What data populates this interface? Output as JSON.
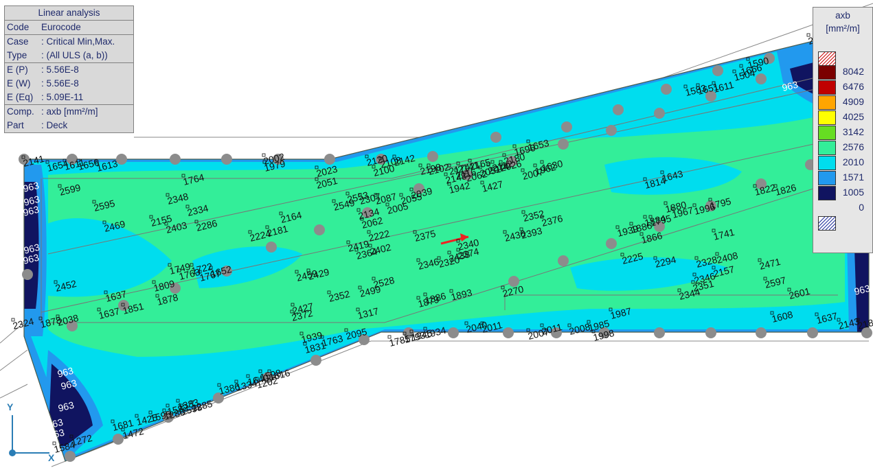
{
  "info_panel": {
    "title": "Linear analysis",
    "rows": [
      {
        "key": "Code",
        "value": "Eurocode"
      },
      {
        "key": "Case",
        "value": ": Critical Min,Max."
      },
      {
        "key": "Type",
        "value": ": (All ULS  (a, b))"
      },
      {
        "key": "E (P)",
        "value": ": 5.56E-8"
      },
      {
        "key": "E (W)",
        "value": ": 5.56E-8"
      },
      {
        "key": "E (Eq)",
        "value": ": 5.09E-11"
      },
      {
        "key": "Comp.",
        "value": ": axb [mm²/m]"
      },
      {
        "key": "Part",
        "value": ": Deck"
      }
    ]
  },
  "legend": {
    "title": "axb",
    "unit": "[mm²/m]",
    "levels": [
      {
        "value": "8042",
        "color": "#7b0000"
      },
      {
        "value": "6476",
        "color": "#c00000"
      },
      {
        "value": "4909",
        "color": "#ffa500"
      },
      {
        "value": "4025",
        "color": "#ffff00"
      },
      {
        "value": "3142",
        "color": "#66dd22"
      },
      {
        "value": "2576",
        "color": "#33ee99"
      },
      {
        "value": "2010",
        "color": "#00ddee"
      },
      {
        "value": "1571",
        "color": "#2299ee"
      },
      {
        "value": "1005",
        "color": "#101460"
      },
      {
        "value": "0",
        "color": "#ffffff"
      }
    ],
    "top_swatch": "hatched-red",
    "bottom_swatch": "hatched-blue"
  },
  "colors": {
    "mid": "#33ee99",
    "low": "#00ddee",
    "lower": "#2299ee",
    "lowest": "#101460",
    "support": "#8c8c8c"
  },
  "axes": {
    "x": "X",
    "y": "Y"
  },
  "edge_labels": [
    "963",
    "963",
    "963",
    "963",
    "963",
    "963",
    "963",
    "963",
    "963",
    "963",
    "963",
    "963"
  ],
  "labels": [
    "2141",
    "1654",
    "1611",
    "1656",
    "1613",
    "2002",
    "1979",
    "2023",
    "2051",
    "2120",
    "2108",
    "2142",
    "2100",
    "2198",
    "2102",
    "2174",
    "2141",
    "2165",
    "2148",
    "2116",
    "2062",
    "2051",
    "2074",
    "2112",
    "2026",
    "2180",
    "1942",
    "1427",
    "1696",
    "2007",
    "1653",
    "1962",
    "1630",
    "1764",
    "2599",
    "2595",
    "2469",
    "2348",
    "2155",
    "2403",
    "2334",
    "2286",
    "2224",
    "2181",
    "2164",
    "2307",
    "2134",
    "2062",
    "2087",
    "2005",
    "2055",
    "2039",
    "2549",
    "2553",
    "2375",
    "2340",
    "2436",
    "2393",
    "2352",
    "2376",
    "2222",
    "2419",
    "2364",
    "2402",
    "2346",
    "2320",
    "2438",
    "2374",
    "1814",
    "1643",
    "1939",
    "1886",
    "1884",
    "1880",
    "1795",
    "1967",
    "1996",
    "1795",
    "1741",
    "1866",
    "1822",
    "1826",
    "2452",
    "1637",
    "1637",
    "1851",
    "1809",
    "1878",
    "1749",
    "1763",
    "1722",
    "1767",
    "1652",
    "2459",
    "2429",
    "2352",
    "2499",
    "2528",
    "2427",
    "2372",
    "1317",
    "1893",
    "1879",
    "1886",
    "2270",
    "2225",
    "2294",
    "2328",
    "2408",
    "2346",
    "2157",
    "2344",
    "2351",
    "2471",
    "2597",
    "2601",
    "2324",
    "2038",
    "1878",
    "1939",
    "1831",
    "1763",
    "2095",
    "1785",
    "1793",
    "1945",
    "1934",
    "2040",
    "2011",
    "2007",
    "2011",
    "2008",
    "1985",
    "1987",
    "1998",
    "1608",
    "1637",
    "2143",
    "2181",
    "2087",
    "1598",
    "1202",
    "1386",
    "1334",
    "1640",
    "1616",
    "1681",
    "1472",
    "1425",
    "1595",
    "1582",
    "1383",
    "1584",
    "1272",
    "1286",
    "1598",
    "1285",
    "1583",
    "1651",
    "1611",
    "1504",
    "1666",
    "1590",
    "1466"
  ]
}
